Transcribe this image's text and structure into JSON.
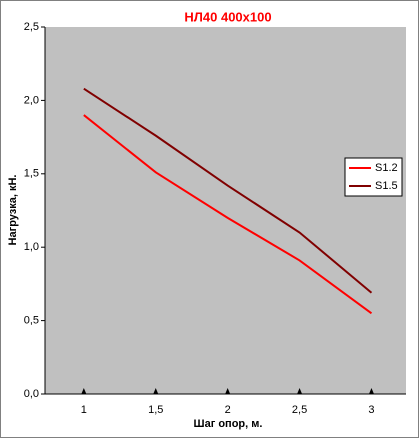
{
  "chart_data": {
    "type": "line",
    "title": "НЛ40 400х100",
    "x_label": "Шаг опор, м.",
    "y_label": "Нагрузка, кН.",
    "x": [
      1,
      1.5,
      2,
      2.5,
      3
    ],
    "series": [
      {
        "name": "S1.2",
        "color": "#ff0000",
        "values": [
          1.9,
          1.51,
          1.2,
          0.91,
          0.55
        ]
      },
      {
        "name": "S1.5",
        "color": "#800000",
        "values": [
          2.08,
          1.76,
          1.42,
          1.1,
          0.69
        ]
      }
    ],
    "xlim": [
      0.73,
      3.24
    ],
    "xticks": [
      1,
      {
        "value": 1.5,
        "label": "1,5"
      },
      2,
      {
        "value": 2.5,
        "label": "2,5"
      },
      3
    ],
    "ylim": [
      0,
      2.5
    ],
    "yticks": [
      {
        "value": 0,
        "label": "0,0"
      },
      {
        "value": 0.5,
        "label": "0,5"
      },
      {
        "value": 1,
        "label": "1,0"
      },
      {
        "value": 1.5,
        "label": "1,5"
      },
      {
        "value": 2,
        "label": "2,0"
      },
      {
        "value": 2.5,
        "label": "2,5"
      }
    ],
    "plot_background": "#c0c0c0",
    "legend": "right"
  }
}
